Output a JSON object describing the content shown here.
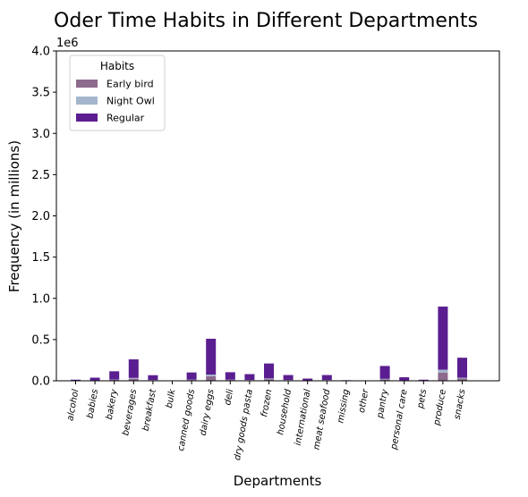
{
  "chart_data": {
    "type": "bar",
    "stacked": true,
    "title": "Oder Time Habits in Different Departments",
    "xlabel": "Departments",
    "ylabel": "Frequency (in millions)",
    "y_offset_label": "1e6",
    "ylim": [
      0,
      4000000
    ],
    "yticks": [
      0,
      500000,
      1000000,
      1500000,
      2000000,
      2500000,
      3000000,
      3500000,
      4000000
    ],
    "ytick_labels": [
      "0.0",
      "0.5",
      "1.0",
      "1.5",
      "2.0",
      "2.5",
      "3.0",
      "3.5",
      "4.0"
    ],
    "legend_title": "Habits",
    "legend_position": "top-left",
    "grid": false,
    "categories": [
      "alcohol",
      "babies",
      "bakery",
      "beverages",
      "breakfast",
      "bulk",
      "canned goods",
      "dairy eggs",
      "deli",
      "dry goods pasta",
      "frozen",
      "household",
      "international",
      "meat seafood",
      "missing",
      "other",
      "pantry",
      "personal care",
      "pets",
      "produce",
      "snacks"
    ],
    "series": [
      {
        "name": "Early bird",
        "color": "#8c6b8c",
        "values": [
          1000,
          4000,
          11000,
          25000,
          7000,
          300,
          10000,
          55000,
          10000,
          8000,
          20000,
          7000,
          2500,
          7000,
          700,
          300,
          17000,
          4000,
          1000,
          100000,
          27000
        ]
      },
      {
        "name": "Night Owl",
        "color": "#a3b6cc",
        "values": [
          500,
          2000,
          4500,
          10000,
          3000,
          100,
          4000,
          20000,
          4000,
          3000,
          9000,
          3000,
          1000,
          3000,
          300,
          100,
          7000,
          2000,
          500,
          35000,
          11000
        ]
      },
      {
        "name": "Regular",
        "color": "#5b1e91",
        "values": [
          12000,
          32000,
          100000,
          225000,
          58000,
          2600,
          87000,
          435000,
          90000,
          70000,
          181000,
          60000,
          23500,
          60000,
          6000,
          2600,
          156000,
          37000,
          11500,
          765000,
          242000
        ]
      }
    ]
  }
}
